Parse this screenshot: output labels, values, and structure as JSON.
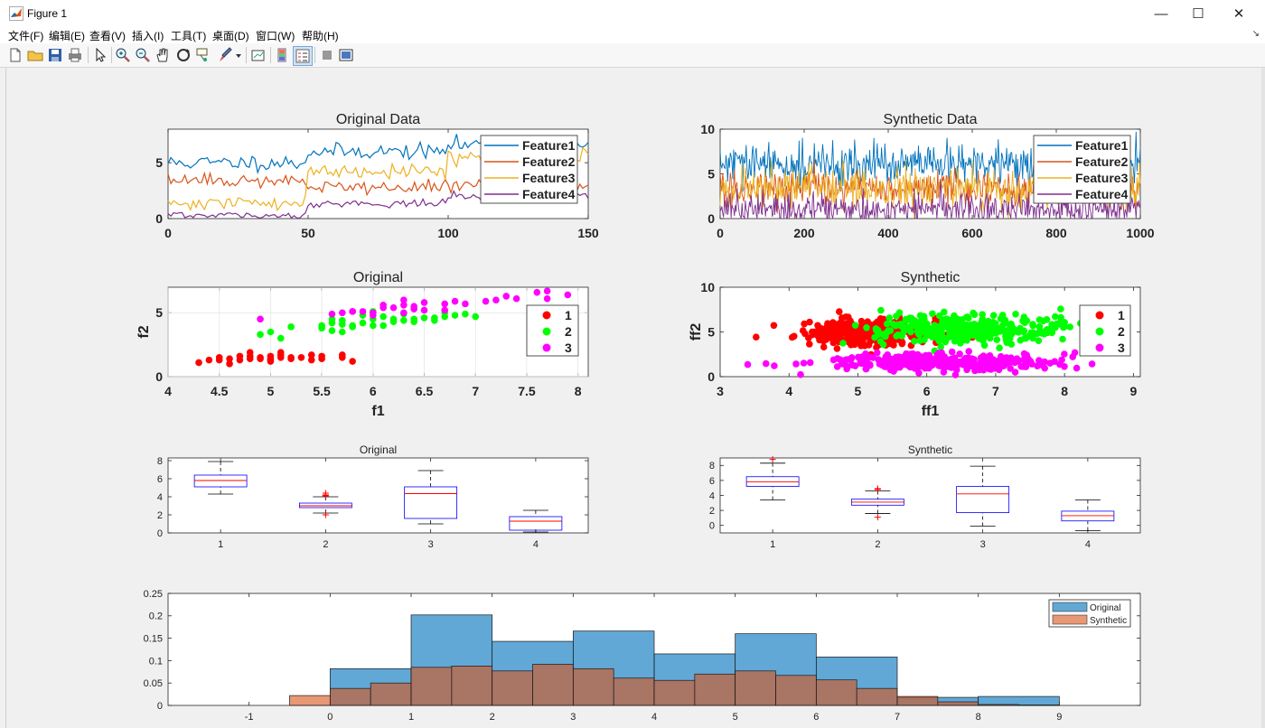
{
  "window": {
    "title": "Figure 1"
  },
  "menu": [
    "文件(F)",
    "编辑(E)",
    "查看(V)",
    "插入(I)",
    "工具(T)",
    "桌面(D)",
    "窗口(W)",
    "帮助(H)"
  ],
  "toolbar_icons": [
    "new-figure-icon",
    "open-file-icon",
    "save-icon",
    "print-icon",
    "select-arrow-icon",
    "zoom-in-icon",
    "zoom-out-icon",
    "pan-hand-icon",
    "rotate-3d-icon",
    "data-cursor-icon",
    "brush-icon",
    "brush-dropdown-icon",
    "link-plot-icon",
    "colorbar-icon",
    "legend-icon",
    "hide-plot-tools-icon",
    "show-plot-tools-icon"
  ],
  "chart_data": [
    {
      "id": "original-data",
      "type": "line",
      "title": "Original Data",
      "xlim": [
        0,
        150
      ],
      "ylim": [
        0,
        8
      ],
      "xticks": [
        "0",
        "50",
        "100",
        "150"
      ],
      "yticks": [
        "0",
        "5"
      ],
      "legend": [
        "Feature1",
        "Feature2",
        "Feature3",
        "Feature4"
      ],
      "legend_position": "top-right",
      "colors": [
        "#0072bd",
        "#d95319",
        "#edb120",
        "#7e2f8e"
      ],
      "series_means": {
        "Feature1": [
          5.0,
          6.0,
          6.6
        ],
        "Feature2": [
          3.4,
          2.8,
          3.0
        ],
        "Feature3": [
          1.4,
          4.3,
          5.5
        ],
        "Feature4": [
          0.25,
          1.35,
          2.0
        ]
      }
    },
    {
      "id": "synthetic-data",
      "type": "line",
      "title": "Synthetic Data",
      "xlim": [
        0,
        1000
      ],
      "ylim": [
        0,
        10
      ],
      "xticks": [
        "0",
        "200",
        "400",
        "600",
        "800",
        "1000"
      ],
      "yticks": [
        "0",
        "5",
        "10"
      ],
      "legend": [
        "Feature1",
        "Feature2",
        "Feature3",
        "Feature4"
      ],
      "legend_position": "top-right",
      "colors": [
        "#0072bd",
        "#d95319",
        "#edb120",
        "#7e2f8e"
      ]
    },
    {
      "id": "original-scatter",
      "type": "scatter",
      "title": "Original",
      "xlabel": "f1",
      "ylabel": "f2",
      "xlim": [
        4,
        8.1
      ],
      "ylim": [
        0,
        7
      ],
      "xticks": [
        "4",
        "4.5",
        "5",
        "5.5",
        "6",
        "6.5",
        "7",
        "7.5",
        "8"
      ],
      "yticks": [
        "0",
        "5"
      ],
      "legend": [
        "1",
        "2",
        "3"
      ],
      "legend_position": "right",
      "colors": [
        "#ff0000",
        "#00ff00",
        "#ff00ff"
      ],
      "series": [
        {
          "name": "1",
          "points": [
            [
              4.3,
              1.1
            ],
            [
              4.4,
              1.3
            ],
            [
              4.5,
              1.3
            ],
            [
              4.6,
              1.4
            ],
            [
              4.6,
              1.0
            ],
            [
              4.7,
              1.3
            ],
            [
              4.7,
              1.6
            ],
            [
              4.8,
              1.4
            ],
            [
              4.8,
              1.9
            ],
            [
              4.9,
              1.5
            ],
            [
              4.9,
              1.4
            ],
            [
              5.0,
              1.4
            ],
            [
              5.0,
              1.6
            ],
            [
              5.0,
              1.2
            ],
            [
              5.1,
              1.5
            ],
            [
              5.1,
              1.7
            ],
            [
              5.1,
              1.9
            ],
            [
              5.2,
              1.5
            ],
            [
              5.2,
              1.4
            ],
            [
              5.3,
              1.5
            ],
            [
              5.4,
              1.7
            ],
            [
              5.4,
              1.3
            ],
            [
              5.5,
              1.4
            ],
            [
              5.5,
              1.6
            ],
            [
              5.7,
              1.7
            ],
            [
              5.7,
              1.5
            ],
            [
              5.8,
              1.2
            ],
            [
              4.5,
              1.5
            ],
            [
              4.8,
              1.6
            ],
            [
              5.0,
              1.3
            ]
          ]
        },
        {
          "name": "2",
          "points": [
            [
              4.9,
              3.3
            ],
            [
              5.0,
              3.5
            ],
            [
              5.1,
              3.0
            ],
            [
              5.2,
              3.9
            ],
            [
              5.5,
              4.0
            ],
            [
              5.6,
              3.6
            ],
            [
              5.6,
              4.5
            ],
            [
              5.7,
              4.1
            ],
            [
              5.7,
              3.5
            ],
            [
              5.8,
              4.0
            ],
            [
              5.8,
              3.9
            ],
            [
              5.9,
              4.2
            ],
            [
              5.9,
              4.8
            ],
            [
              6.0,
              4.0
            ],
            [
              6.0,
              4.5
            ],
            [
              6.1,
              4.7
            ],
            [
              6.1,
              4.0
            ],
            [
              6.2,
              4.3
            ],
            [
              6.2,
              4.5
            ],
            [
              6.3,
              4.4
            ],
            [
              6.3,
              4.9
            ],
            [
              6.4,
              4.3
            ],
            [
              6.4,
              4.5
            ],
            [
              6.5,
              4.6
            ],
            [
              6.6,
              4.6
            ],
            [
              6.6,
              4.4
            ],
            [
              6.7,
              4.7
            ],
            [
              6.7,
              5.0
            ],
            [
              6.8,
              4.8
            ],
            [
              6.9,
              4.9
            ],
            [
              7.0,
              4.7
            ],
            [
              5.5,
              3.8
            ],
            [
              5.6,
              4.2
            ],
            [
              5.7,
              4.4
            ],
            [
              6.0,
              5.1
            ]
          ]
        },
        {
          "name": "3",
          "points": [
            [
              4.9,
              4.5
            ],
            [
              5.6,
              4.9
            ],
            [
              5.7,
              5.0
            ],
            [
              5.8,
              5.1
            ],
            [
              5.9,
              5.1
            ],
            [
              6.0,
              5.0
            ],
            [
              6.1,
              5.6
            ],
            [
              6.2,
              5.4
            ],
            [
              6.3,
              5.6
            ],
            [
              6.3,
              6.0
            ],
            [
              6.4,
              5.3
            ],
            [
              6.4,
              5.5
            ],
            [
              6.5,
              5.8
            ],
            [
              6.5,
              5.2
            ],
            [
              6.7,
              5.7
            ],
            [
              6.7,
              5.2
            ],
            [
              6.8,
              5.9
            ],
            [
              6.9,
              5.7
            ],
            [
              7.1,
              5.9
            ],
            [
              7.2,
              6.0
            ],
            [
              7.3,
              6.3
            ],
            [
              7.4,
              6.1
            ],
            [
              7.6,
              6.6
            ],
            [
              7.7,
              6.7
            ],
            [
              7.7,
              6.1
            ],
            [
              7.9,
              6.4
            ],
            [
              6.0,
              4.8
            ],
            [
              5.8,
              5.1
            ],
            [
              6.1,
              5.4
            ],
            [
              6.3,
              5.0
            ]
          ]
        }
      ]
    },
    {
      "id": "synthetic-scatter",
      "type": "scatter",
      "title": "Synthetic",
      "xlabel": "ff1",
      "ylabel": "ff2",
      "xlim": [
        3,
        9.1
      ],
      "ylim": [
        0,
        10
      ],
      "xticks": [
        "3",
        "4",
        "5",
        "6",
        "7",
        "8",
        "9"
      ],
      "yticks": [
        "0",
        "5",
        "10"
      ],
      "legend": [
        "1",
        "2",
        "3"
      ],
      "legend_position": "right",
      "colors": [
        "#ff0000",
        "#00ff00",
        "#ff00ff"
      ],
      "clusters": [
        {
          "name": "1",
          "cx": 5.1,
          "cy": 4.9,
          "sx": 0.45,
          "sy": 0.75,
          "n": 340
        },
        {
          "name": "2",
          "cx": 6.6,
          "cy": 5.3,
          "sx": 0.7,
          "sy": 0.8,
          "n": 340
        },
        {
          "name": "3",
          "cx": 6.1,
          "cy": 1.6,
          "sx": 0.85,
          "sy": 0.45,
          "n": 340
        }
      ]
    },
    {
      "id": "original-box",
      "type": "box",
      "title": "Original",
      "ylim": [
        0,
        8.3
      ],
      "xticks": [
        "1",
        "2",
        "3",
        "4"
      ],
      "yticks": [
        "0",
        "2",
        "4",
        "6",
        "8"
      ],
      "boxes": [
        {
          "min": 4.3,
          "q1": 5.1,
          "median": 5.8,
          "q3": 6.4,
          "max": 7.9,
          "outliers": []
        },
        {
          "min": 2.2,
          "q1": 2.8,
          "median": 3.0,
          "q3": 3.3,
          "max": 4.0,
          "outliers": [
            2.0,
            4.1,
            4.4,
            4.2
          ]
        },
        {
          "min": 1.0,
          "q1": 1.6,
          "median": 4.35,
          "q3": 5.1,
          "max": 6.9,
          "outliers": []
        },
        {
          "min": 0.1,
          "q1": 0.3,
          "median": 1.3,
          "q3": 1.8,
          "max": 2.5,
          "outliers": []
        }
      ]
    },
    {
      "id": "synthetic-box",
      "type": "box",
      "title": "Synthetic",
      "ylim": [
        -1,
        9
      ],
      "xticks": [
        "1",
        "2",
        "3",
        "4"
      ],
      "yticks": [
        "0",
        "2",
        "4",
        "6",
        "8"
      ],
      "boxes": [
        {
          "min": 3.4,
          "q1": 5.2,
          "median": 5.8,
          "q3": 6.5,
          "max": 8.3,
          "outliers": [
            8.8
          ]
        },
        {
          "min": 1.6,
          "q1": 2.7,
          "median": 3.1,
          "q3": 3.5,
          "max": 4.6,
          "outliers": [
            1.1,
            4.9,
            4.8
          ]
        },
        {
          "min": -0.1,
          "q1": 1.7,
          "median": 4.2,
          "q3": 5.2,
          "max": 7.9,
          "outliers": []
        },
        {
          "min": -0.7,
          "q1": 0.6,
          "median": 1.3,
          "q3": 1.9,
          "max": 3.4,
          "outliers": []
        }
      ]
    },
    {
      "id": "histogram",
      "type": "bar",
      "xlim": [
        -2,
        10
      ],
      "ylim": [
        0,
        0.25
      ],
      "xticks": [
        "-1",
        "0",
        "1",
        "2",
        "3",
        "4",
        "5",
        "6",
        "7",
        "8",
        "9"
      ],
      "yticks": [
        "0",
        "0.05",
        "0.1",
        "0.15",
        "0.2",
        "0.25"
      ],
      "legend": [
        "Original",
        "Synthetic"
      ],
      "legend_position": "top-right",
      "colors": [
        "#0072bd",
        "#d95319"
      ],
      "bin_edges": [
        -1,
        0,
        1,
        2,
        3,
        4,
        5,
        6,
        7,
        8,
        9
      ],
      "series": [
        {
          "name": "Original",
          "values": [
            0,
            0.082,
            0.202,
            0.143,
            0.166,
            0.115,
            0.16,
            0.108,
            0.018,
            0.02,
            0
          ]
        },
        {
          "name": "Synthetic",
          "values": [
            0.022,
            0.038,
            0.05,
            0.085,
            0.088,
            0.077,
            0.092,
            0.082,
            0.061,
            0.056,
            0.07,
            0.077,
            0.067,
            0.057,
            0.038,
            0.02,
            0.008,
            0.002,
            0.001
          ]
        }
      ],
      "synthetic_bin_width": 0.5,
      "synthetic_bin_start": -0.5
    }
  ]
}
